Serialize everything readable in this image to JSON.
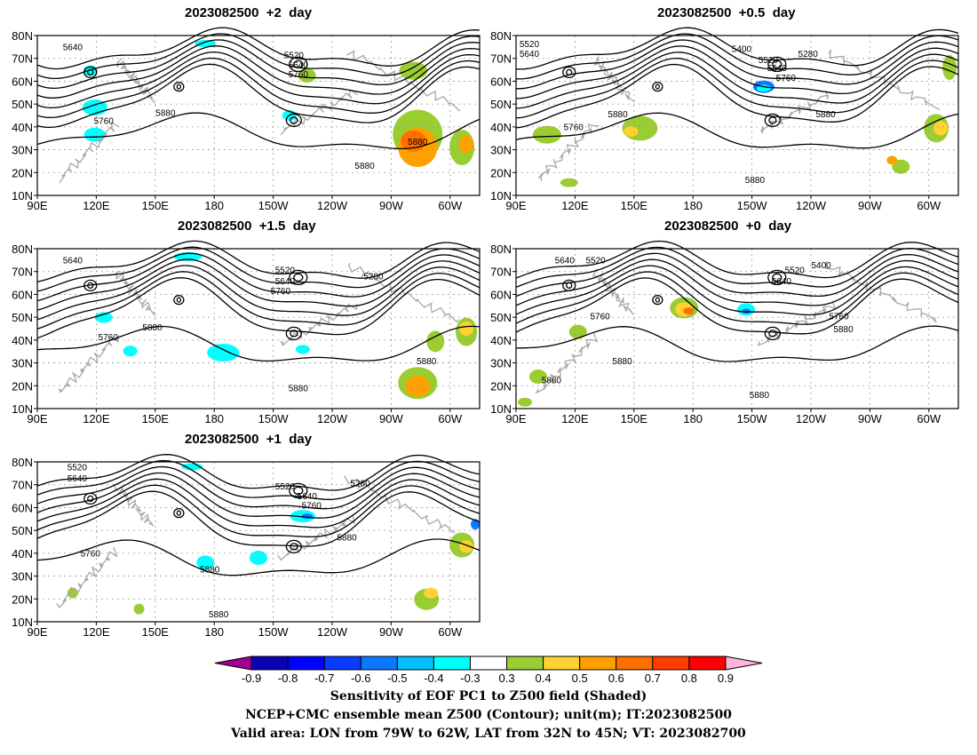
{
  "panels": [
    {
      "id": "p2",
      "title": "2023082500  +2  day"
    },
    {
      "id": "p05",
      "title": "2023082500  +0.5  day"
    },
    {
      "id": "p15",
      "title": "2023082500  +1.5  day"
    },
    {
      "id": "p0",
      "title": "2023082500  +0  day"
    },
    {
      "id": "p1",
      "title": "2023082500  +1  day"
    }
  ],
  "axes": {
    "lat_labels": [
      "80N",
      "70N",
      "60N",
      "50N",
      "40N",
      "30N",
      "20N",
      "10N"
    ],
    "lon_labels": [
      "90E",
      "120E",
      "150E",
      "180",
      "150W",
      "120W",
      "90W",
      "60W"
    ]
  },
  "contour_labels": {
    "p2": [
      "5640",
      "5520",
      "5640",
      "5760",
      "5760",
      "5880",
      "5880",
      "5880"
    ],
    "p05": [
      "5520",
      "5640",
      "5400",
      "5280",
      "5520",
      "5640",
      "5760",
      "5880",
      "5760",
      "5880",
      "5880"
    ],
    "p15": [
      "5640",
      "5520",
      "5640",
      "5760",
      "5280",
      "5760",
      "5880",
      "5880",
      "5880"
    ],
    "p0": [
      "5640",
      "5520",
      "5520",
      "5400",
      "5640",
      "5760",
      "5760",
      "5880",
      "5880",
      "5880",
      "5880"
    ],
    "p1": [
      "5520",
      "5640",
      "5520",
      "5640",
      "5760",
      "5280",
      "5880",
      "5760",
      "5880",
      "5880"
    ]
  },
  "colorbar": {
    "levels": [
      "-0.9",
      "-0.8",
      "-0.7",
      "-0.6",
      "-0.5",
      "-0.4",
      "-0.3",
      "0.3",
      "0.4",
      "0.5",
      "0.6",
      "0.7",
      "0.8",
      "0.9"
    ],
    "colors": [
      "#a00096",
      "#0a00b4",
      "#0000ff",
      "#0a3cff",
      "#0a78ff",
      "#00beff",
      "#00ffff",
      "#ffffff",
      "#9acd32",
      "#ffd232",
      "#ffa000",
      "#ff6e00",
      "#ff3c00",
      "#ff0000",
      "#ffb4dc"
    ]
  },
  "footer": {
    "line1": "Sensitivity of EOF PC1 to Z500 field (Shaded)",
    "line2": "NCEP+CMC ensemble mean Z500 (Contour); unit(m); IT:2023082500",
    "line3": "Valid area: LON from 79W to 62W, LAT from 32N to 45N; VT: 2023082700"
  }
}
